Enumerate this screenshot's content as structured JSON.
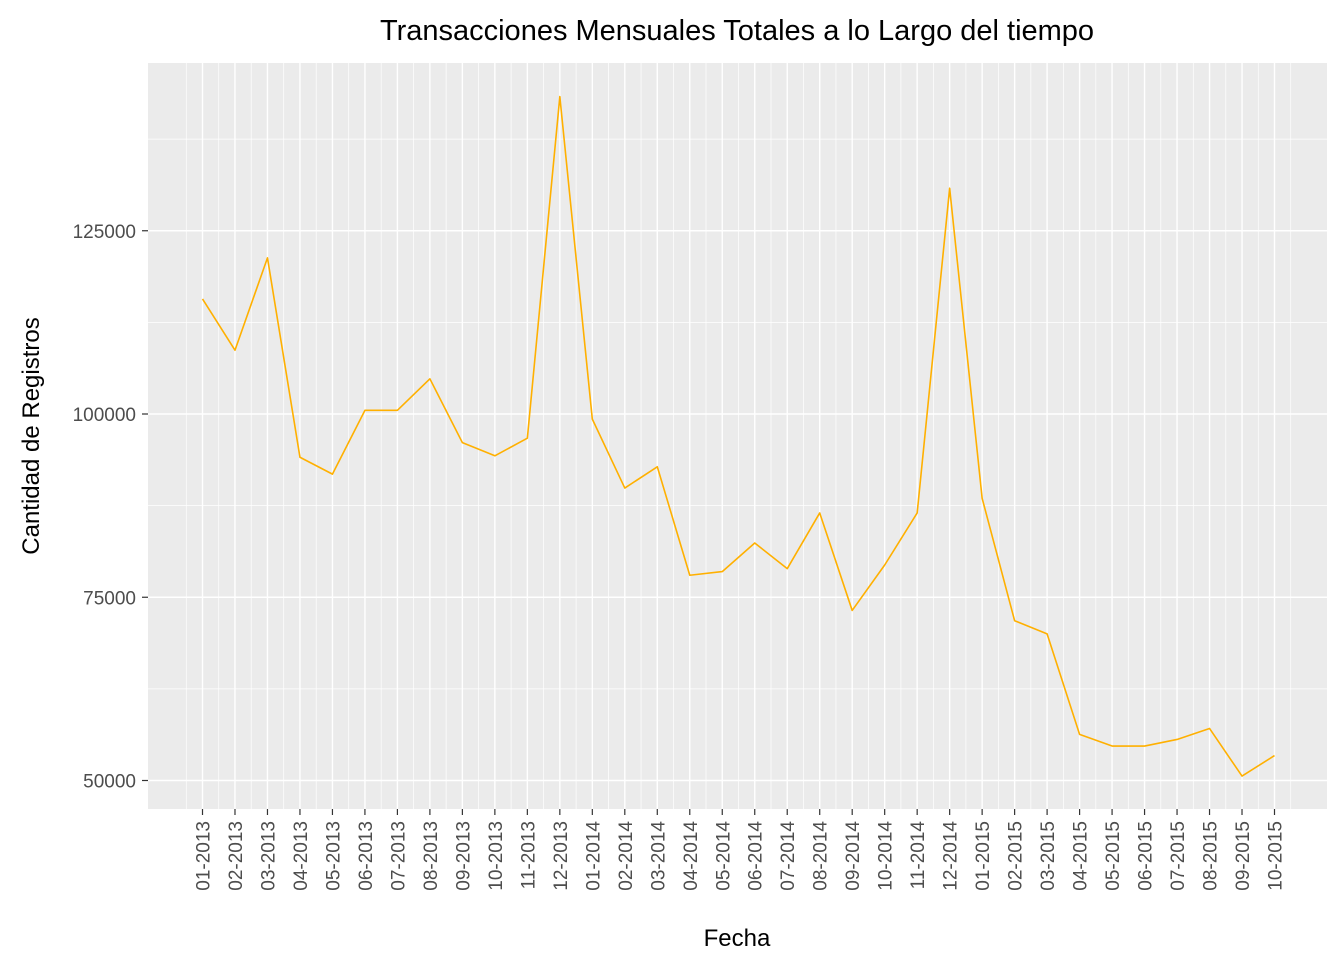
{
  "chart_data": {
    "type": "line",
    "title": "Transacciones Mensuales Totales a lo Largo del tiempo",
    "xlabel": "Fecha",
    "ylabel": "Cantidad de Registros",
    "categories": [
      "01-2013",
      "02-2013",
      "03-2013",
      "04-2013",
      "05-2013",
      "06-2013",
      "07-2013",
      "08-2013",
      "09-2013",
      "10-2013",
      "11-2013",
      "12-2013",
      "01-2014",
      "02-2014",
      "03-2014",
      "04-2014",
      "05-2014",
      "06-2014",
      "07-2014",
      "08-2014",
      "09-2014",
      "10-2014",
      "11-2014",
      "12-2014",
      "01-2015",
      "02-2015",
      "03-2015",
      "04-2015",
      "05-2015",
      "06-2015",
      "07-2015",
      "08-2015",
      "09-2015",
      "10-2015"
    ],
    "y_ticks": [
      50000,
      75000,
      100000,
      125000
    ],
    "y_tick_labels": [
      "50000",
      "75000",
      "100000",
      "125000"
    ],
    "ylim": [
      45000,
      147000
    ],
    "series": [
      {
        "values": [
          115700,
          108700,
          121300,
          94100,
          91800,
          100500,
          100500,
          104800,
          96100,
          94300,
          96700,
          143300,
          99300,
          89900,
          92800,
          78000,
          78500,
          82400,
          78900,
          86500,
          73200,
          79400,
          86500,
          130800,
          88500,
          71800,
          70000,
          56300,
          54700,
          54700,
          55600,
          57100,
          50600,
          53400
        ],
        "color": "#FFB000"
      }
    ],
    "panel_background": "#EBEBEB",
    "grid": true,
    "grid_color": "#FFFFFF",
    "legend": "none"
  }
}
